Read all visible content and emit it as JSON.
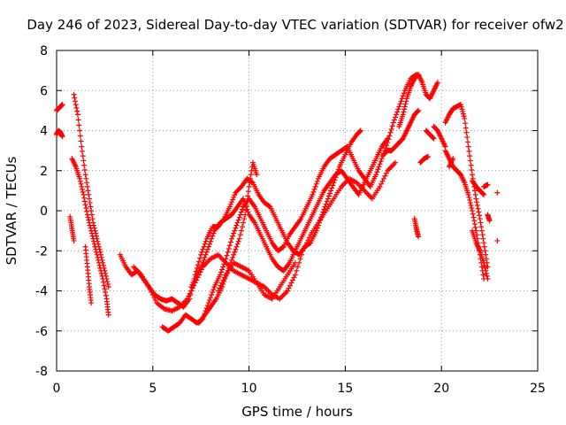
{
  "chart_data": {
    "type": "scatter",
    "title": "Day 246 of 2023, Sidereal Day-to-day VTEC variation (SDTVAR) for receiver ofw2",
    "xlabel": "GPS time / hours",
    "ylabel": "SDTVAR / TECUs",
    "xlim": [
      0,
      25
    ],
    "ylim": [
      -8,
      8
    ],
    "xticks": [
      "0",
      "5",
      "10",
      "15",
      "20",
      "25"
    ],
    "yticks": [
      "-8",
      "-6",
      "-4",
      "-2",
      "0",
      "2",
      "4",
      "6",
      "8"
    ],
    "grid": true,
    "marker": "plus",
    "color": "#ff0000",
    "series": [
      {
        "name": "s1",
        "x": [
          0.0,
          0.1,
          0.2,
          0.3
        ],
        "y": [
          3.8,
          4.0,
          3.9,
          3.7
        ]
      },
      {
        "name": "s2",
        "x": [
          0.0,
          0.1,
          0.2,
          0.3
        ],
        "y": [
          5.0,
          5.1,
          5.2,
          5.3
        ]
      },
      {
        "name": "s3",
        "x": [
          0.9,
          1.1,
          1.3,
          1.5,
          1.7,
          1.9,
          2.1,
          2.3,
          2.5,
          2.7
        ],
        "y": [
          5.8,
          4.8,
          3.2,
          1.8,
          0.6,
          -0.6,
          -1.4,
          -2.2,
          -3.0,
          -3.8
        ]
      },
      {
        "name": "s4",
        "x": [
          0.8,
          1.0,
          1.2,
          1.4,
          1.6,
          1.8,
          2.0,
          2.2,
          2.4,
          2.6,
          2.7
        ],
        "y": [
          2.6,
          2.2,
          1.6,
          0.8,
          -0.2,
          -1.0,
          -1.8,
          -2.6,
          -3.4,
          -4.4,
          -5.2
        ]
      },
      {
        "name": "s5",
        "x": [
          0.7,
          0.8,
          0.9
        ],
        "y": [
          -0.3,
          -0.9,
          -1.5
        ]
      },
      {
        "name": "s6",
        "x": [
          1.5,
          1.6,
          1.7,
          1.8
        ],
        "y": [
          -1.8,
          -2.8,
          -3.8,
          -4.6
        ]
      },
      {
        "name": "s7",
        "x": [
          3.3,
          3.6,
          3.9,
          4.2,
          4.5,
          4.8,
          5.1,
          5.4,
          5.7,
          6.0,
          6.3,
          6.6,
          6.9,
          7.2,
          7.5,
          7.8,
          8.1,
          8.4,
          8.7,
          9.0,
          9.3,
          9.6,
          9.9,
          10.2,
          10.5,
          10.8,
          11.1,
          11.4,
          11.7,
          12.0,
          12.3,
          12.6,
          12.9,
          13.2,
          13.5,
          13.8,
          14.1,
          14.4,
          14.7,
          15.0,
          15.3,
          15.6,
          15.8
        ],
        "y": [
          -2.2,
          -2.8,
          -3.2,
          -3.0,
          -3.4,
          -3.8,
          -4.2,
          -4.4,
          -4.5,
          -4.4,
          -4.6,
          -4.8,
          -4.4,
          -3.2,
          -2.2,
          -1.4,
          -0.8,
          -0.8,
          -0.4,
          0.2,
          0.9,
          1.2,
          1.6,
          1.4,
          0.8,
          0.4,
          0.2,
          -0.4,
          -1.0,
          -1.6,
          -2.0,
          -2.2,
          -1.8,
          -1.6,
          -1.0,
          -0.2,
          0.6,
          1.4,
          2.2,
          2.8,
          3.4,
          3.8,
          4.0
        ]
      },
      {
        "name": "s8",
        "x": [
          4.0,
          4.4,
          4.8,
          5.2,
          5.6,
          6.0,
          6.4,
          6.8,
          7.2,
          7.6,
          8.0,
          8.4,
          8.8,
          9.2,
          9.6,
          10.0,
          10.4,
          10.8,
          11.2,
          11.6,
          12.0,
          12.4,
          12.8,
          13.2,
          13.6,
          14.0,
          14.4,
          14.8,
          15.2,
          15.6,
          16.0,
          16.4,
          16.8,
          17.2,
          17.6
        ],
        "y": [
          -2.8,
          -3.2,
          -3.8,
          -4.6,
          -4.9,
          -5.0,
          -4.8,
          -4.4,
          -3.6,
          -2.8,
          -2.4,
          -2.2,
          -2.6,
          -3.0,
          -3.2,
          -3.4,
          -3.6,
          -3.8,
          -4.2,
          -4.4,
          -4.0,
          -3.2,
          -2.0,
          -1.2,
          -0.6,
          0.0,
          0.6,
          1.2,
          1.6,
          1.4,
          1.0,
          0.6,
          1.2,
          2.0,
          2.4
        ]
      },
      {
        "name": "s9",
        "x": [
          5.5,
          5.8,
          6.1,
          6.4,
          6.7,
          7.0,
          7.3,
          7.6,
          7.9,
          8.2,
          8.5,
          8.8,
          9.1,
          9.4,
          9.7,
          10.0,
          10.3,
          10.6,
          10.9,
          11.2,
          11.5,
          11.8,
          12.1,
          12.4,
          12.7,
          13.0,
          13.3,
          13.6,
          13.9,
          14.2,
          14.5,
          14.8,
          15.1,
          15.4,
          15.7,
          16.0,
          16.3,
          16.6,
          16.9,
          17.2,
          17.5,
          17.8,
          18.1,
          18.4,
          18.7
        ],
        "y": [
          -5.8,
          -6.0,
          -5.8,
          -5.6,
          -5.2,
          -5.4,
          -5.6,
          -5.4,
          -4.6,
          -3.8,
          -3.2,
          -2.4,
          -1.4,
          -0.6,
          0.2,
          0.6,
          0.2,
          -0.4,
          -1.0,
          -1.6,
          -2.0,
          -1.8,
          -1.2,
          -0.8,
          -0.4,
          0.2,
          0.8,
          1.6,
          2.2,
          2.6,
          2.8,
          3.0,
          3.2,
          2.6,
          2.0,
          1.6,
          1.2,
          1.8,
          2.6,
          3.4,
          4.4,
          5.2,
          6.0,
          6.6,
          6.8
        ]
      },
      {
        "name": "s10",
        "x": [
          7.0,
          7.3,
          7.6,
          7.9,
          8.2,
          8.5,
          8.8,
          9.1,
          9.4,
          9.7,
          10.0,
          10.3,
          10.6,
          10.9,
          11.2,
          11.5,
          11.8,
          12.1,
          12.4,
          12.7,
          13.0,
          13.3,
          13.6,
          13.9,
          14.2,
          14.5,
          14.8,
          15.1,
          15.4,
          15.7,
          16.0,
          16.3,
          16.6,
          16.9,
          17.2
        ],
        "y": [
          -3.8,
          -3.2,
          -2.6,
          -1.8,
          -1.0,
          -0.6,
          -0.4,
          -0.2,
          0.2,
          0.6,
          -0.2,
          -0.6,
          -1.2,
          -1.8,
          -2.4,
          -2.8,
          -3.0,
          -2.6,
          -2.0,
          -1.4,
          -0.8,
          -0.2,
          0.4,
          1.0,
          1.4,
          1.8,
          2.0,
          1.6,
          1.2,
          0.8,
          1.4,
          2.0,
          2.6,
          3.2,
          3.6
        ]
      },
      {
        "name": "s11",
        "x": [
          8.4,
          8.8,
          9.2,
          9.6,
          10.0,
          10.4,
          10.8,
          11.2,
          11.6,
          12.0,
          12.4
        ],
        "y": [
          -4.0,
          -3.2,
          -2.6,
          -2.8,
          -3.0,
          -3.6,
          -4.2,
          -4.4,
          -3.8,
          -3.2,
          -2.6
        ]
      },
      {
        "name": "s12",
        "x": [
          7.4,
          7.7,
          8.0,
          8.3,
          8.6,
          8.9,
          9.2,
          9.5,
          9.8,
          10.0,
          10.2,
          10.4
        ],
        "y": [
          -5.6,
          -5.2,
          -4.8,
          -4.4,
          -3.8,
          -3.0,
          -2.2,
          -1.4,
          -0.2,
          1.2,
          2.4,
          1.8
        ]
      },
      {
        "name": "s13",
        "x": [
          17.8,
          18.0,
          18.2,
          18.4,
          18.6,
          18.8,
          19.0,
          19.2,
          19.4,
          19.6,
          19.8
        ],
        "y": [
          4.2,
          4.8,
          5.6,
          6.2,
          6.6,
          6.8,
          6.4,
          5.8,
          5.6,
          6.0,
          6.4
        ]
      },
      {
        "name": "s14",
        "x": [
          17.0,
          17.2,
          17.4,
          17.6,
          17.8,
          18.0,
          18.2,
          18.4,
          18.6,
          18.8
        ],
        "y": [
          2.8,
          3.0,
          3.0,
          3.2,
          3.4,
          3.6,
          4.0,
          4.4,
          4.8,
          5.0
        ]
      },
      {
        "name": "s15",
        "x": [
          19.6,
          19.8,
          20.0,
          20.2
        ],
        "y": [
          4.2,
          4.0,
          3.6,
          3.2
        ]
      },
      {
        "name": "s16",
        "x": [
          18.6,
          18.7,
          18.8
        ],
        "y": [
          -0.4,
          -0.9,
          -1.3
        ]
      },
      {
        "name": "s17",
        "x": [
          18.9,
          19.1,
          19.3
        ],
        "y": [
          2.4,
          2.6,
          2.7
        ]
      },
      {
        "name": "s18",
        "x": [
          20.2,
          20.4,
          20.6,
          20.8,
          21.0,
          21.2,
          21.4,
          21.6,
          21.8,
          22.0,
          22.2,
          22.4
        ],
        "y": [
          4.4,
          4.8,
          5.1,
          5.2,
          5.3,
          4.6,
          3.2,
          1.8,
          0.6,
          -0.4,
          -1.6,
          -2.8
        ]
      },
      {
        "name": "s19",
        "x": [
          20.2,
          20.4,
          20.6,
          20.8,
          21.0,
          21.2,
          21.4,
          21.6,
          21.8,
          22.0,
          22.2
        ],
        "y": [
          3.0,
          2.6,
          2.2,
          2.0,
          1.8,
          1.4,
          0.8,
          0.0,
          -1.0,
          -2.2,
          -3.4
        ]
      },
      {
        "name": "s20",
        "x": [
          21.6,
          21.8,
          22.0,
          22.2,
          22.4
        ],
        "y": [
          -1.0,
          -1.6,
          -2.0,
          -2.6,
          -3.4
        ]
      },
      {
        "name": "s21",
        "x": [
          21.6,
          21.8,
          22.0,
          22.2
        ],
        "y": [
          1.5,
          1.2,
          1.0,
          0.8
        ]
      },
      {
        "name": "s22",
        "x": [
          22.4,
          22.5
        ],
        "y": [
          -0.2,
          -0.5
        ]
      },
      {
        "name": "s23",
        "x": [
          22.9
        ],
        "y": [
          0.9
        ]
      },
      {
        "name": "s24",
        "x": [
          22.9
        ],
        "y": [
          -1.5
        ]
      },
      {
        "name": "s25",
        "x": [
          22.2,
          22.4
        ],
        "y": [
          1.2,
          1.3
        ]
      },
      {
        "name": "s26",
        "x": [
          20.4,
          20.6
        ],
        "y": [
          2.2,
          2.6
        ]
      },
      {
        "name": "s27",
        "x": [
          19.2,
          19.4,
          19.6
        ],
        "y": [
          4.0,
          3.8,
          3.6
        ]
      }
    ]
  }
}
